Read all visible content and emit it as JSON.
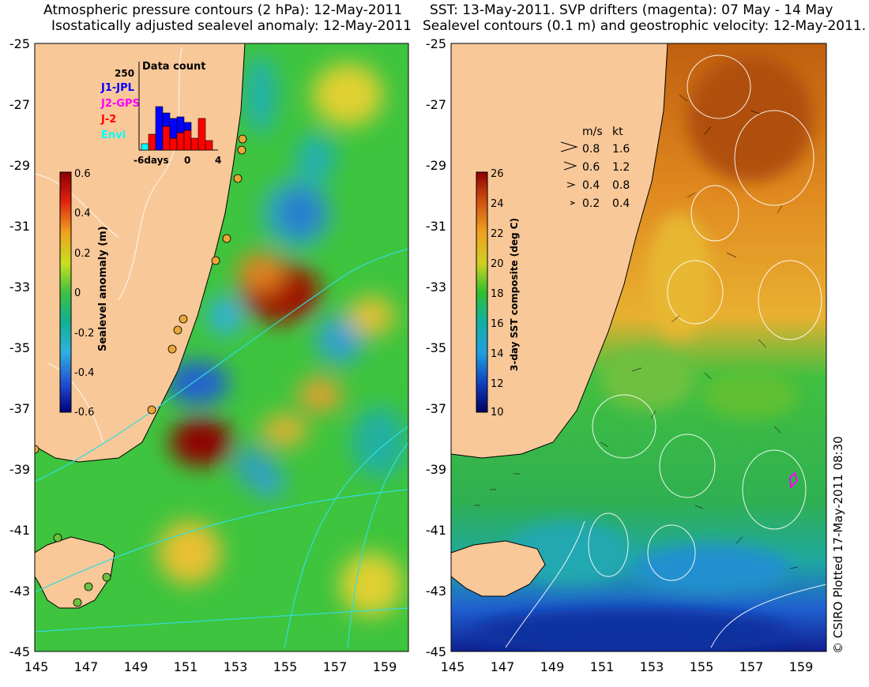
{
  "left_panel": {
    "title_line1": "Atmospheric pressure contours (2 hPa): 12-May-2011",
    "title_line2": "Isostatically adjusted sealevel anomaly: 12-May-2011",
    "colorbar": {
      "label": "Sealevel anomaly (m)",
      "ticks": [
        "0.6",
        "0.4",
        "0.2",
        "0",
        "-0.2",
        "-0.4",
        "-0.6"
      ],
      "range": [
        -0.6,
        0.6
      ]
    },
    "inset": {
      "title": "Data count",
      "ymax_label": "250",
      "legend": [
        {
          "name": "J1-JPL",
          "color": "#0000ff"
        },
        {
          "name": "J2-GPS",
          "color": "#ff00ff"
        },
        {
          "name": "J-2",
          "color": "#ff0000"
        },
        {
          "name": "Envi",
          "color": "#00ffff"
        }
      ],
      "xticks": [
        "-6days",
        "0",
        "4"
      ]
    }
  },
  "right_panel": {
    "title_line1": "SST: 13-May-2011. SVP drifters (magenta): 07 May - 14 May",
    "title_line2": "Sealevel contours (0.1 m) and geostrophic velocity: 12-May-2011.",
    "colorbar": {
      "label": "3-day SST composite (deg C)",
      "ticks": [
        "26",
        "24",
        "22",
        "20",
        "18",
        "16",
        "14",
        "12",
        "10"
      ],
      "range": [
        10,
        26
      ]
    },
    "velocity_legend": {
      "header_ms": "m/s",
      "header_kt": "kt",
      "rows": [
        {
          "ms": "0.8",
          "kt": "1.6"
        },
        {
          "ms": "0.6",
          "kt": "1.2"
        },
        {
          "ms": "0.4",
          "kt": "0.8"
        },
        {
          "ms": "0.2",
          "kt": "0.4"
        }
      ]
    }
  },
  "axes": {
    "lat_labels": [
      "-25",
      "-27",
      "-29",
      "-31",
      "-33",
      "-35",
      "-37",
      "-39",
      "-41",
      "-43",
      "-45"
    ],
    "lon_labels": [
      "145",
      "147",
      "149",
      "151",
      "153",
      "155",
      "157",
      "159"
    ],
    "lat_range": [
      -45,
      -25
    ],
    "lon_range": [
      145,
      160
    ]
  },
  "colors": {
    "land": "#f9c898",
    "coastline": "#000000",
    "contour_cyan": "#33dddd",
    "contour_white": "#ffffff",
    "station_fill": "#e8a838",
    "drifter": "#ff00ff"
  },
  "credit": "© CSIRO Plotted 17-May-2011 08:30"
}
